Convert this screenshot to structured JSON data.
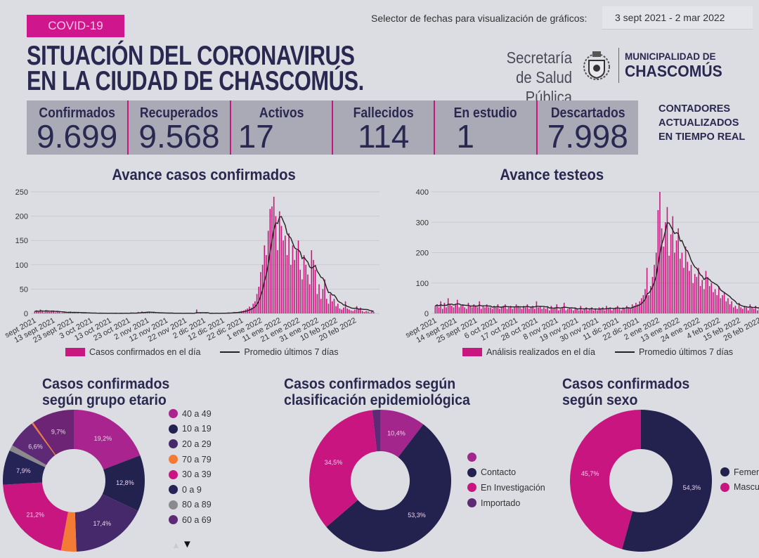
{
  "header": {
    "badge": "COVID-19",
    "date_selector_label": "Selector de fechas para visualización de gráficos:",
    "date_range": "3 sept 2021 - 2 mar 2022",
    "title_line1": "SITUACIÓN DEL CORONAVIRUS",
    "title_line2": "EN LA CIUDAD DE CHASCOMÚS.",
    "logo_secretaria_1": "Secretaría",
    "logo_secretaria_2": "de Salud Pública",
    "logo_municipalidad": "MUNICIPALIDAD DE",
    "logo_chascomus": "CHASCOMÚS"
  },
  "stats": [
    {
      "label": "Confirmados",
      "value": "9.699"
    },
    {
      "label": "Recuperados",
      "value": "9.568"
    },
    {
      "label": "Activos",
      "value": "17"
    },
    {
      "label": "Fallecidos",
      "value": "114"
    },
    {
      "label": "En estudio",
      "value": "1"
    },
    {
      "label": "Descartados",
      "value": "7.998"
    }
  ],
  "counters_note": [
    "CONTADORES",
    "ACTUALIZADOS",
    "EN TIEMPO REAL"
  ],
  "colors": {
    "magenta": "#c8177f",
    "navy": "#23224f",
    "purple": "#45296b",
    "text": "#2a2850",
    "stats_bg": "#a9aab6"
  },
  "chart_data": [
    {
      "type": "bar",
      "title": "Avance casos confirmados",
      "ylim": [
        0,
        250
      ],
      "yticks": [
        "0",
        "50",
        "100",
        "150",
        "200",
        "250"
      ],
      "grid": true,
      "legend_position": "bottom",
      "xtick_labels": [
        "sept 2021",
        "13 sept 2021",
        "23 sept 2021",
        "3 oct 2021",
        "13 oct 2021",
        "23 oct 2021",
        "2 nov 2021",
        "12 nov 2021",
        "22 nov 2021",
        "2 dic 2021",
        "12 dic 2021",
        "22 dic 2021",
        "1 ene 2022",
        "11 ene 2022",
        "21 ene 2022",
        "31 ene 2022",
        "10 feb 2022",
        "20 feb 2022"
      ],
      "xtick_step_days": 10,
      "x_start": "3 sept 2021",
      "x_end": "2 mar 2022",
      "series": [
        {
          "name": "Casos confirmados en el día",
          "type": "bar",
          "color": "#c8177f",
          "values": [
            4,
            6,
            3,
            8,
            5,
            2,
            7,
            4,
            3,
            5,
            6,
            2,
            4,
            3,
            1,
            2,
            3,
            1,
            2,
            4,
            1,
            2,
            1,
            3,
            0,
            1,
            2,
            1,
            0,
            1,
            1,
            0,
            1,
            0,
            0,
            1,
            0,
            1,
            0,
            0,
            1,
            0,
            0,
            1,
            0,
            0,
            1,
            0,
            1,
            0,
            0,
            2,
            1,
            0,
            1,
            3,
            2,
            4,
            2,
            3,
            3,
            2,
            1,
            2,
            1,
            0,
            1,
            2,
            1,
            0,
            1,
            0,
            1,
            0,
            0,
            1,
            0,
            1,
            0,
            0,
            1,
            0,
            1,
            0,
            0,
            1,
            8,
            0,
            1,
            0,
            0,
            1,
            0,
            0,
            1,
            0,
            1,
            0,
            0,
            1,
            0,
            1,
            1,
            2,
            1,
            2,
            3,
            2,
            3,
            4,
            5,
            6,
            8,
            10,
            14,
            12,
            20,
            25,
            40,
            55,
            85,
            100,
            140,
            120,
            170,
            215,
            220,
            240,
            200,
            130,
            210,
            180,
            150,
            160,
            120,
            165,
            100,
            140,
            110,
            130,
            150,
            90,
            70,
            120,
            100,
            80,
            60,
            130,
            110,
            90,
            40,
            60,
            30,
            50,
            70,
            30,
            20,
            40,
            25,
            30,
            15,
            20,
            10,
            8,
            12,
            25,
            10,
            8,
            6,
            5,
            8,
            15,
            10,
            12,
            5,
            3,
            5,
            4,
            2,
            6,
            3
          ]
        },
        {
          "name": "Promedio últimos 7 días",
          "type": "line",
          "color": "#222222"
        }
      ]
    },
    {
      "type": "bar",
      "title": "Avance testeos",
      "ylim": [
        0,
        400
      ],
      "yticks": [
        "0",
        "100",
        "200",
        "300",
        "400"
      ],
      "grid": true,
      "legend_position": "bottom",
      "xtick_labels": [
        "sept 2021",
        "14 sept 2021",
        "25 sept 2021",
        "6 oct 2021",
        "17 oct 2021",
        "28 oct 2021",
        "8 nov 2021",
        "19 nov 2021",
        "30 nov 2021",
        "11 dic 2021",
        "22 dic 2021",
        "2 ene 2022",
        "13 ene 2022",
        "24 ene 2022",
        "4 feb 2022",
        "15 feb 2022",
        "26 feb 2022"
      ],
      "xtick_step_days": 11,
      "x_start": "3 sept 2021",
      "x_end": "2 mar 2022",
      "series": [
        {
          "name": "Análisis realizados en el día",
          "type": "bar",
          "color": "#c8177f",
          "values": [
            25,
            30,
            20,
            40,
            15,
            35,
            20,
            50,
            30,
            25,
            20,
            30,
            45,
            20,
            25,
            30,
            20,
            15,
            35,
            25,
            20,
            30,
            25,
            20,
            40,
            15,
            25,
            20,
            30,
            20,
            20,
            15,
            25,
            20,
            30,
            15,
            20,
            25,
            30,
            15,
            20,
            25,
            15,
            20,
            30,
            25,
            20,
            15,
            25,
            20,
            30,
            15,
            20,
            25,
            15,
            40,
            20,
            25,
            15,
            20,
            15,
            20,
            10,
            25,
            15,
            20,
            30,
            10,
            15,
            20,
            35,
            10,
            15,
            20,
            15,
            10,
            20,
            15,
            10,
            25,
            10,
            15,
            20,
            10,
            15,
            20,
            10,
            15,
            10,
            20,
            15,
            20,
            10,
            25,
            15,
            20,
            10,
            15,
            20,
            25,
            15,
            10,
            20,
            15,
            25,
            20,
            15,
            30,
            25,
            35,
            30,
            40,
            50,
            60,
            80,
            150,
            60,
            90,
            120,
            160,
            200,
            340,
            400,
            280,
            220,
            300,
            350,
            190,
            260,
            320,
            200,
            240,
            280,
            180,
            200,
            150,
            220,
            170,
            140,
            160,
            100,
            130,
            120,
            150,
            90,
            110,
            80,
            140,
            120,
            90,
            100,
            70,
            80,
            60,
            90,
            50,
            60,
            70,
            40,
            50,
            30,
            40,
            20,
            25,
            15,
            35,
            20,
            15,
            25,
            20,
            10,
            30,
            20,
            15,
            25,
            10,
            20,
            15,
            10,
            20,
            15
          ]
        },
        {
          "name": "Promedio últimos 7 días",
          "type": "line",
          "color": "#222222"
        }
      ]
    },
    {
      "type": "pie",
      "title": "Casos confirmados según grupo etario",
      "donut": true,
      "slices": [
        {
          "name": "40 a 49",
          "value": 19.2,
          "label": "19,2%",
          "color": "#a9248f"
        },
        {
          "name": "10 a 19",
          "value": 12.8,
          "label": "12,8%",
          "color": "#23224f"
        },
        {
          "name": "20 a 29",
          "value": 17.4,
          "label": "17,4%",
          "color": "#45296b"
        },
        {
          "name": "70 a 79",
          "value": 3.5,
          "label": "",
          "color": "#f47b35"
        },
        {
          "name": "30 a 39",
          "value": 21.2,
          "label": "21,2%",
          "color": "#c8157f"
        },
        {
          "name": "0 a 9",
          "value": 7.9,
          "label": "7,9%",
          "color": "#262356"
        },
        {
          "name": "80 a 89",
          "value": 1.3,
          "label": "",
          "color": "#8a8a8e"
        },
        {
          "name": "60 a 69",
          "value": 6.6,
          "label": "6,6%",
          "color": "#5e2a76"
        },
        {
          "name": "",
          "value": 0.4,
          "label": "",
          "color": "#f47b35"
        },
        {
          "name": "",
          "value": 9.7,
          "label": "9,7%",
          "color": "#6d2474"
        }
      ],
      "legend": [
        "40 a 49",
        "10 a 19",
        "20 a 29",
        "70 a 79",
        "30 a 39",
        "0 a 9",
        "80 a 89",
        "60 a 69"
      ],
      "legend_colors": [
        "#a9248f",
        "#23224f",
        "#45296b",
        "#f47b35",
        "#c8157f",
        "#262356",
        "#8a8a8e",
        "#5e2a76"
      ]
    },
    {
      "type": "pie",
      "title": "Casos confirmados según clasificación epidemiológica",
      "donut": true,
      "slices": [
        {
          "name": "",
          "value": 10.4,
          "label": "10,4%",
          "color": "#a3268c"
        },
        {
          "name": "Contacto",
          "value": 53.3,
          "label": "53,3%",
          "color": "#23224f"
        },
        {
          "name": "En Investigación",
          "value": 34.5,
          "label": "34,5%",
          "color": "#c8157f"
        },
        {
          "name": "Importado",
          "value": 1.8,
          "label": "",
          "color": "#5e2a76"
        }
      ],
      "legend": [
        "",
        "Contacto",
        "En Investigación",
        "Importado"
      ],
      "legend_colors": [
        "#a3268c",
        "#23224f",
        "#c8157f",
        "#5e2a76"
      ]
    },
    {
      "type": "pie",
      "title": "Casos confirmados según sexo",
      "donut": true,
      "slices": [
        {
          "name": "Femenino",
          "value": 54.3,
          "label": "54,3%",
          "color": "#23224f"
        },
        {
          "name": "Masculino",
          "value": 45.7,
          "label": "45,7%",
          "color": "#c8157f"
        }
      ],
      "legend": [
        "Femenino",
        "Masculino"
      ],
      "legend_colors": [
        "#23224f",
        "#c8157f"
      ]
    }
  ],
  "charts_titles": {
    "c1": "Avance casos confirmados",
    "c2": "Avance testeos",
    "d1_l1": "Casos confirmados",
    "d1_l2": "según grupo etario",
    "d2_l1": "Casos confirmados según",
    "d2_l2": "clasificación epidemiológica",
    "d3_l1": "Casos confirmados",
    "d3_l2": "según sexo"
  }
}
